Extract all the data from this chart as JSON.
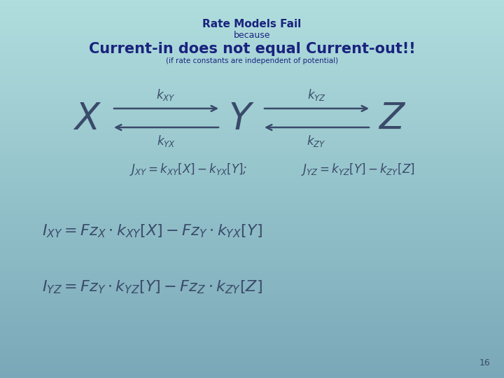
{
  "bg_color_top": "#b0dede",
  "bg_color_bottom": "#7aa8b8",
  "text_color": "#1a237e",
  "formula_color": "#3a4a6a",
  "title1": "Rate Models Fail",
  "title2": "because",
  "title3": "Current-in does not equal Current-out!!",
  "title4": "(if rate constants are independent of potential)",
  "slide_number": "16",
  "arrow_color": "#3a4a6a"
}
